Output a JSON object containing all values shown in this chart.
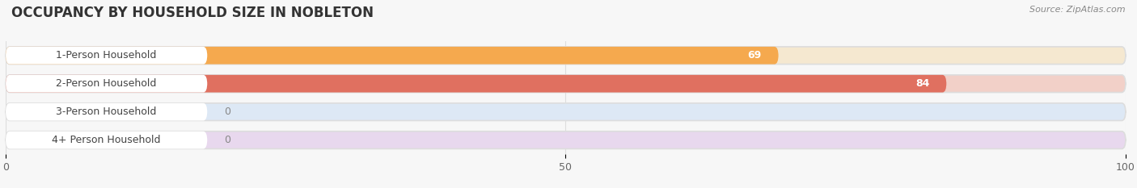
{
  "title": "OCCUPANCY BY HOUSEHOLD SIZE IN NOBLETON",
  "source": "Source: ZipAtlas.com",
  "categories": [
    "1-Person Household",
    "2-Person Household",
    "3-Person Household",
    "4+ Person Household"
  ],
  "values": [
    69,
    84,
    0,
    0
  ],
  "bar_colors": [
    "#F5A94E",
    "#E07060",
    "#A8C0E0",
    "#C8A8D8"
  ],
  "bar_bg_colors": [
    "#F5E8D0",
    "#F2D0C8",
    "#DDE8F5",
    "#E8D8EE"
  ],
  "xlim": [
    0,
    100
  ],
  "xticks": [
    0,
    50,
    100
  ],
  "bar_height": 0.62,
  "figsize": [
    14.06,
    2.33
  ],
  "dpi": 100,
  "title_fontsize": 12,
  "label_fontsize": 9,
  "value_fontsize": 9,
  "tick_fontsize": 9,
  "bg_color": "#F7F7F7",
  "plot_bg": "#FFFFFF",
  "label_pill_color": "#FFFFFF",
  "label_text_color": "#444444",
  "value_color_inside": "#FFFFFF",
  "value_color_outside": "#888888"
}
